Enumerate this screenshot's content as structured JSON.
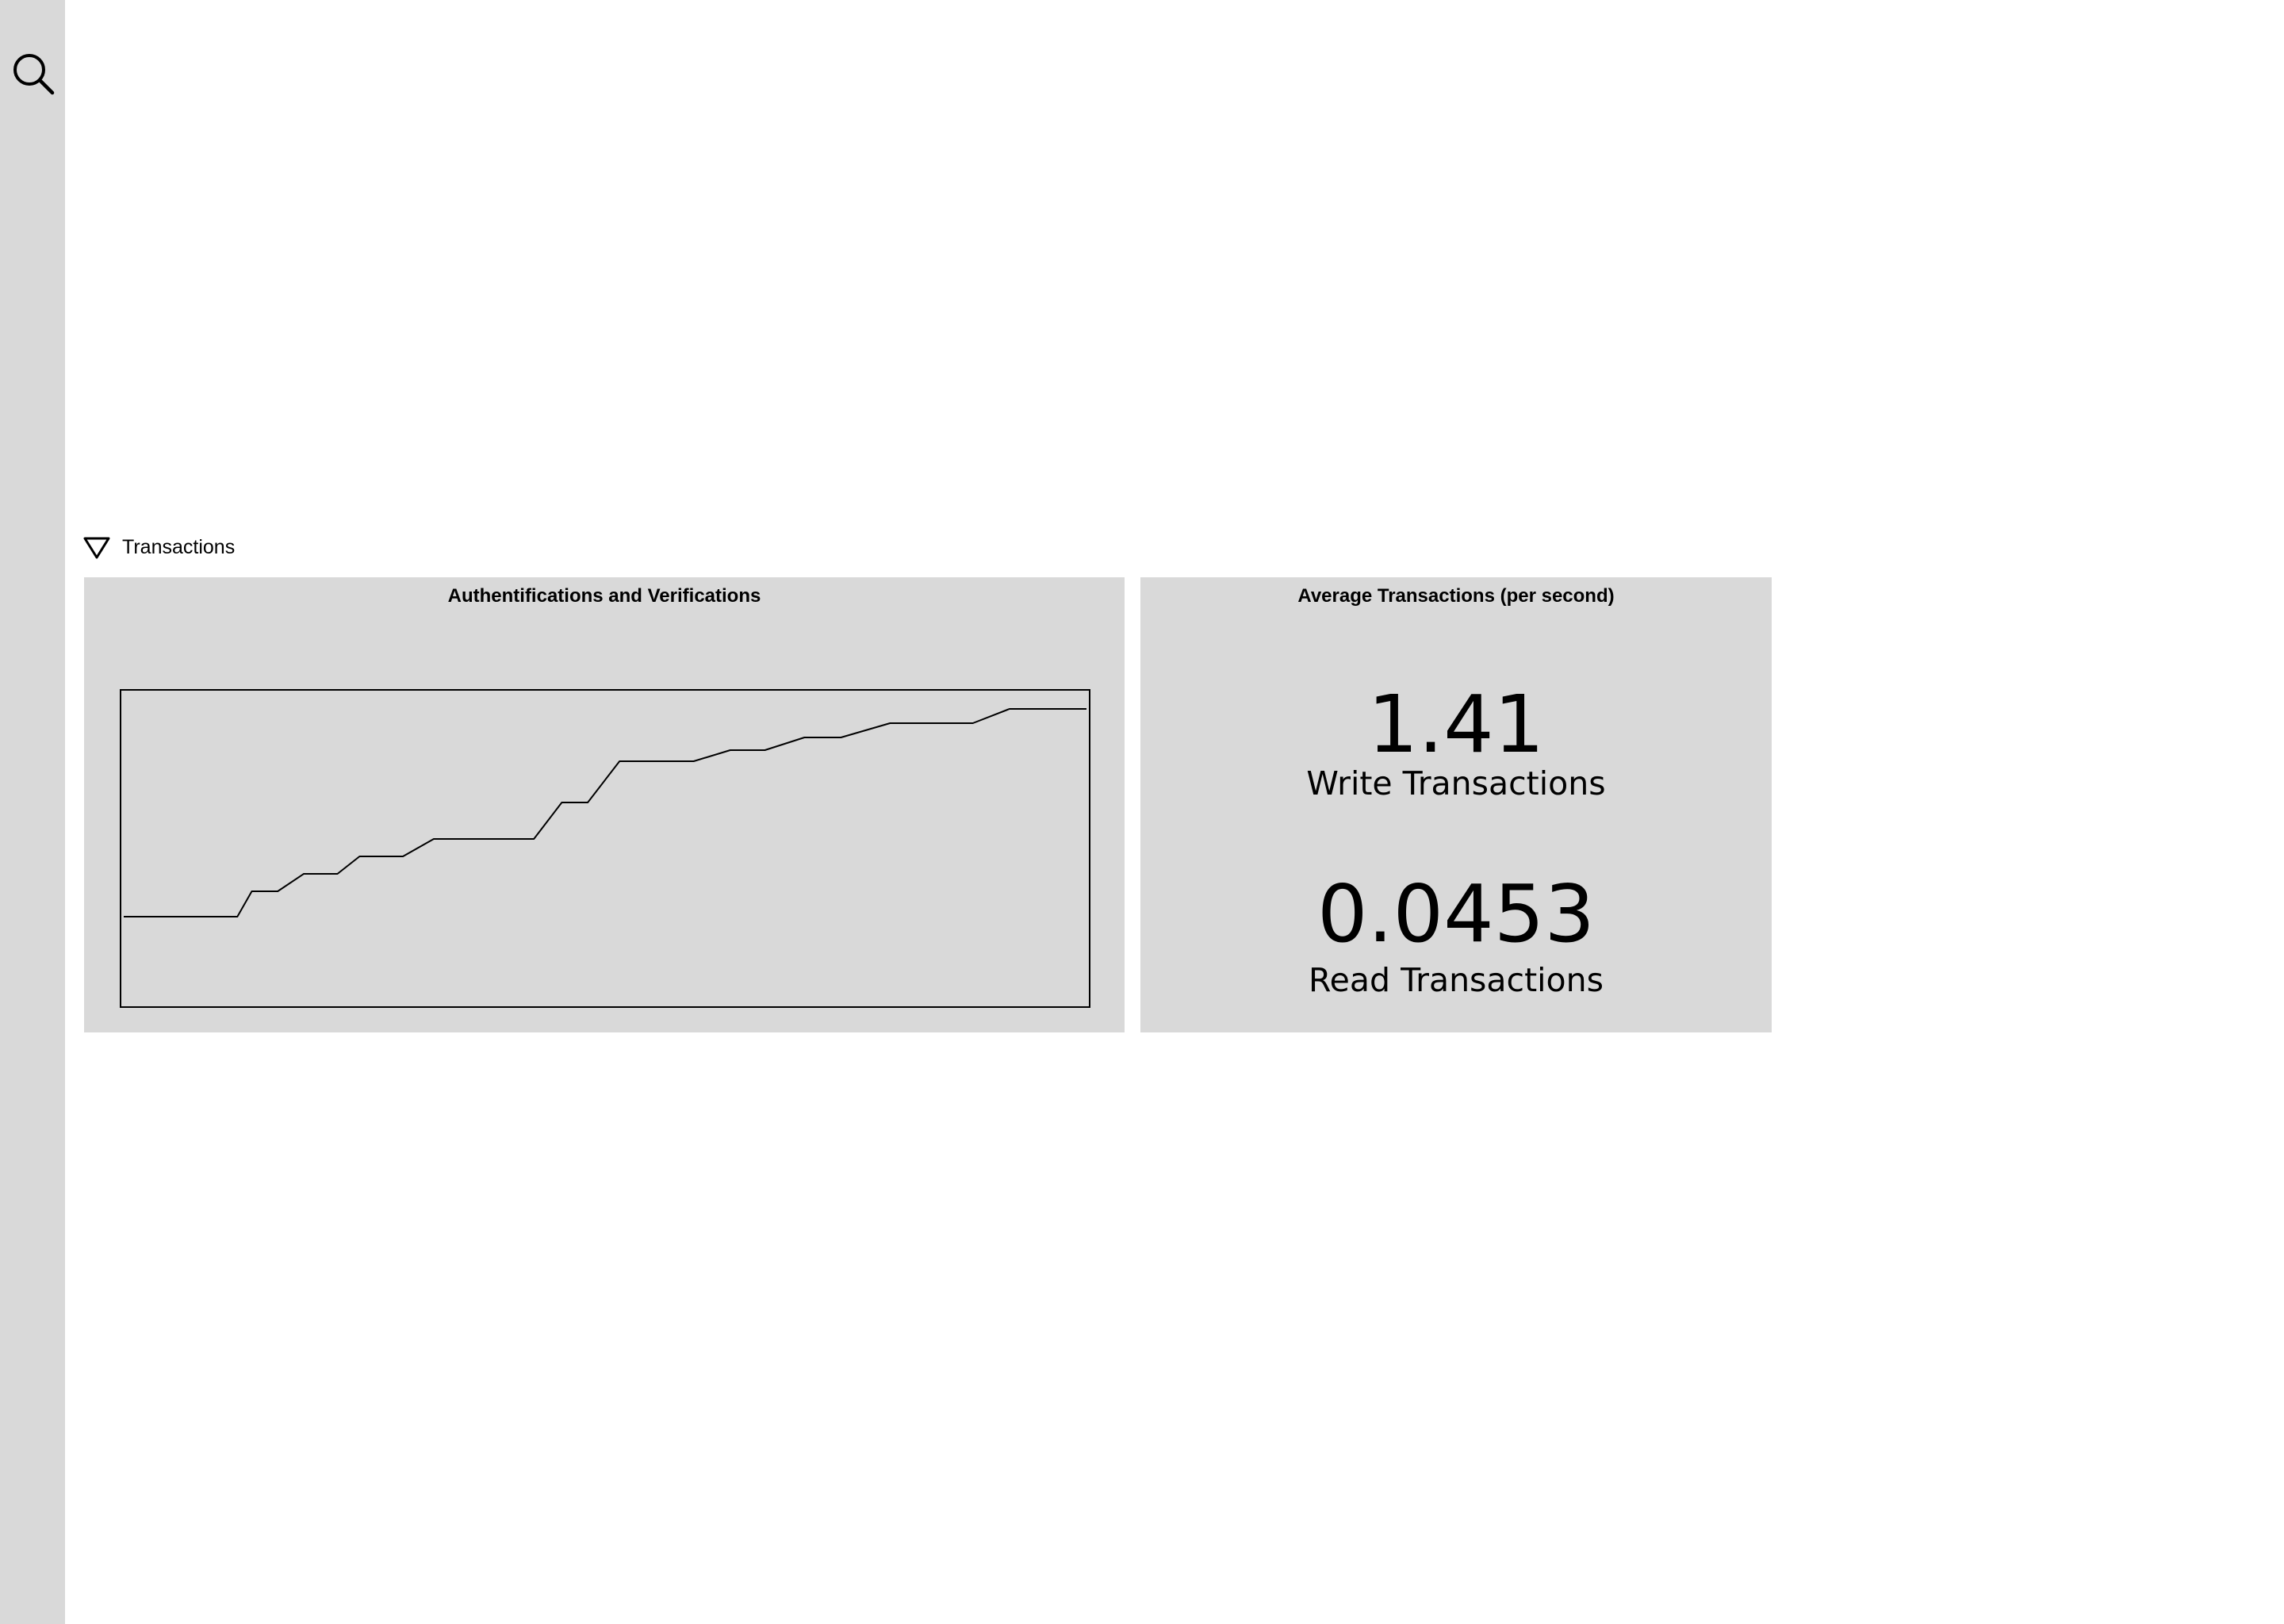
{
  "sidebar": {
    "search_icon": "search-icon"
  },
  "section": {
    "toggle_icon": "triangle-down-icon",
    "label": "Transactions"
  },
  "panels": {
    "auth": {
      "title": "Authentifications and Verifications"
    },
    "average": {
      "title": "Average Transactions (per second)",
      "stats": [
        {
          "value": "1.41",
          "label": "Write Transactions"
        },
        {
          "value": "0.0453",
          "label": "Read Transactions"
        }
      ]
    }
  },
  "chart_data": {
    "type": "line",
    "title": "Authentifications and Verifications",
    "xlabel": "",
    "ylabel": "",
    "grid": false,
    "x": [
      0,
      11.8,
      13.3,
      16,
      18.7,
      22.2,
      24.5,
      29,
      32.2,
      42.6,
      45.5,
      48.2,
      51.5,
      59.2,
      63,
      66.6,
      70.7,
      74.5,
      79.6,
      79.8,
      88.2,
      92,
      100
    ],
    "y": [
      28.5,
      28.5,
      36.5,
      36.5,
      42,
      42,
      47.5,
      47.5,
      53,
      53,
      64.5,
      64.5,
      77.5,
      77.5,
      81,
      81,
      85,
      85,
      89.5,
      89.5,
      89.5,
      94,
      94
    ],
    "xlim": [
      0,
      100
    ],
    "ylim": [
      0,
      100
    ]
  },
  "colors": {
    "sidebar_bg": "#d9d9d9",
    "panel_bg": "#d9d9d9",
    "page_bg": "#ffffff",
    "line": "#000000"
  }
}
